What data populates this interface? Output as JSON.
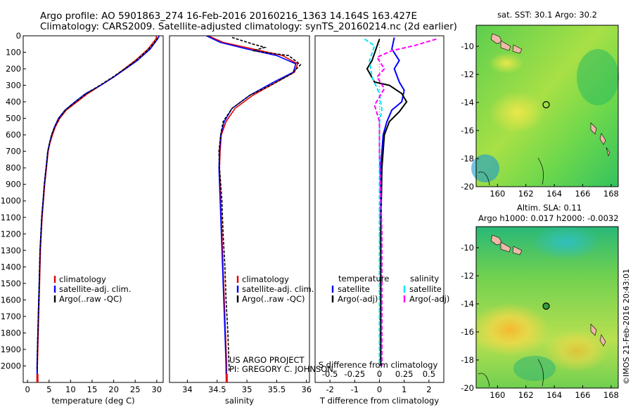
{
  "header": {
    "title_line1": "Argo profile: AO 5901863_274 16-Feb-2016 20160216_1363 14.164S 163.427E",
    "title_line2": "Climatology: CARS2009. Satellite-adjusted climatology: synTS_20160214.nc (2d earlier)"
  },
  "colors": {
    "climatology": "#e00000",
    "satellite": "#0000ff",
    "argo": "#000000",
    "sal_satellite": "#00e5ff",
    "sal_argo": "#ff00ff",
    "map_ocean_low": "#1fb070",
    "map_ocean_mid": "#7ed84a",
    "map_ocean_high": "#f2e64a",
    "land": "#f0b8a8"
  },
  "footer": {
    "project": "US ARGO PROJECT",
    "pi": "PI: GREGORY C. JOHNSON",
    "stamp": "©IMOS 21-Feb-2016 20:43:01"
  },
  "chart_data": [
    {
      "type": "line",
      "name": "temperature-profile",
      "xlabel": "temperature (deg C)",
      "ylabel": "",
      "xlim": [
        -1,
        31.5
      ],
      "ylim": [
        2100,
        0
      ],
      "xticks": [
        0,
        5,
        10,
        15,
        20,
        25,
        30
      ],
      "yticks": [
        0,
        100,
        200,
        300,
        400,
        500,
        600,
        700,
        800,
        900,
        1000,
        1100,
        1200,
        1300,
        1400,
        1500,
        1600,
        1700,
        1800,
        1900,
        2000
      ],
      "legend": [
        "climatology",
        "satellite-adj. clim.",
        "Argo(..raw -QC)"
      ],
      "series": [
        {
          "name": "climatology",
          "color_key": "climatology",
          "points": [
            [
              30,
              0
            ],
            [
              29.8,
              20
            ],
            [
              28,
              80
            ],
            [
              25,
              150
            ],
            [
              22.5,
              200
            ],
            [
              20,
              250
            ],
            [
              17,
              300
            ],
            [
              14,
              350
            ],
            [
              11.5,
              400
            ],
            [
              9,
              450
            ],
            [
              7.5,
              500
            ],
            [
              6.5,
              550
            ],
            [
              5.8,
              600
            ],
            [
              5.2,
              650
            ],
            [
              4.8,
              700
            ],
            [
              4.4,
              800
            ],
            [
              4.0,
              900
            ],
            [
              3.7,
              1000
            ],
            [
              3.4,
              1100
            ],
            [
              3.2,
              1200
            ],
            [
              3.0,
              1300
            ],
            [
              2.9,
              1400
            ],
            [
              2.8,
              1500
            ],
            [
              2.7,
              1600
            ],
            [
              2.6,
              1700
            ],
            [
              2.5,
              1800
            ],
            [
              2.4,
              1900
            ],
            [
              2.3,
              2000
            ],
            [
              2.3,
              2050
            ]
          ]
        },
        {
          "name": "satellite-adj. clim.",
          "color_key": "satellite",
          "points": [
            [
              30.6,
              0
            ],
            [
              30.2,
              20
            ],
            [
              28.5,
              80
            ],
            [
              25.5,
              150
            ],
            [
              22.8,
              200
            ],
            [
              20,
              250
            ],
            [
              17,
              300
            ],
            [
              13.5,
              350
            ],
            [
              11,
              400
            ],
            [
              8.7,
              450
            ],
            [
              7.2,
              500
            ],
            [
              6.3,
              550
            ],
            [
              5.6,
              600
            ],
            [
              5.1,
              650
            ],
            [
              4.7,
              700
            ],
            [
              4.3,
              800
            ],
            [
              3.9,
              900
            ],
            [
              3.6,
              1000
            ],
            [
              3.3,
              1100
            ],
            [
              3.1,
              1200
            ],
            [
              2.9,
              1300
            ],
            [
              2.8,
              1400
            ],
            [
              2.7,
              1500
            ],
            [
              2.6,
              1600
            ],
            [
              2.5,
              1700
            ],
            [
              2.4,
              1800
            ],
            [
              2.3,
              1900
            ],
            [
              2.2,
              2000
            ],
            [
              2.2,
              2050
            ]
          ]
        },
        {
          "name": "Argo(..raw -QC)",
          "color_key": "argo",
          "points": [
            [
              30.3,
              10
            ],
            [
              29.5,
              40
            ],
            [
              27.8,
              90
            ],
            [
              25.2,
              150
            ],
            [
              22.6,
              200
            ],
            [
              19.8,
              250
            ],
            [
              16.8,
              300
            ],
            [
              13.7,
              350
            ],
            [
              11.2,
              400
            ],
            [
              8.8,
              450
            ],
            [
              7.3,
              500
            ],
            [
              6.3,
              550
            ],
            [
              5.6,
              600
            ],
            [
              5.1,
              650
            ],
            [
              4.7,
              700
            ],
            [
              4.3,
              800
            ],
            [
              3.9,
              900
            ],
            [
              3.6,
              1000
            ],
            [
              3.3,
              1100
            ],
            [
              3.1,
              1200
            ],
            [
              2.9,
              1300
            ],
            [
              2.8,
              1400
            ],
            [
              2.7,
              1500
            ],
            [
              2.6,
              1600
            ],
            [
              2.5,
              1700
            ],
            [
              2.4,
              1800
            ],
            [
              2.3,
              1900
            ],
            [
              2.25,
              2000
            ],
            [
              2.25,
              2030
            ]
          ]
        }
      ]
    },
    {
      "type": "line",
      "name": "salinity-profile",
      "xlabel": "salinity",
      "xlim": [
        33.7,
        36.05
      ],
      "ylim": [
        2100,
        0
      ],
      "xticks": [
        34,
        34.5,
        35,
        35.5,
        36
      ],
      "legend": [
        "climatology",
        "satellite-adj. clim.",
        "Argo(..raw -QC)"
      ],
      "series": [
        {
          "name": "climatology",
          "color_key": "climatology",
          "points": [
            [
              34.35,
              0
            ],
            [
              34.6,
              40
            ],
            [
              35.1,
              80
            ],
            [
              35.6,
              120
            ],
            [
              35.85,
              170
            ],
            [
              35.8,
              220
            ],
            [
              35.5,
              280
            ],
            [
              35.1,
              360
            ],
            [
              34.8,
              440
            ],
            [
              34.65,
              520
            ],
            [
              34.57,
              600
            ],
            [
              34.55,
              700
            ],
            [
              34.54,
              800
            ],
            [
              34.55,
              900
            ],
            [
              34.56,
              1000
            ],
            [
              34.58,
              1200
            ],
            [
              34.6,
              1400
            ],
            [
              34.62,
              1600
            ],
            [
              34.64,
              1800
            ],
            [
              34.66,
              2000
            ],
            [
              34.66,
              2050
            ]
          ]
        },
        {
          "name": "satellite-adj. clim.",
          "color_key": "satellite",
          "points": [
            [
              34.32,
              0
            ],
            [
              34.55,
              40
            ],
            [
              35.0,
              80
            ],
            [
              35.5,
              120
            ],
            [
              35.82,
              170
            ],
            [
              35.78,
              220
            ],
            [
              35.45,
              280
            ],
            [
              35.05,
              360
            ],
            [
              34.75,
              440
            ],
            [
              34.62,
              520
            ],
            [
              34.56,
              600
            ],
            [
              34.54,
              700
            ],
            [
              34.53,
              800
            ],
            [
              34.54,
              900
            ],
            [
              34.55,
              1000
            ],
            [
              34.57,
              1200
            ],
            [
              34.59,
              1400
            ],
            [
              34.61,
              1600
            ],
            [
              34.63,
              1800
            ],
            [
              34.65,
              2000
            ],
            [
              34.65,
              2050
            ]
          ]
        },
        {
          "name": "Argo(..raw -QC)",
          "color_key": "argo",
          "points": [
            [
              34.75,
              10
            ],
            [
              35.1,
              50
            ],
            [
              35.3,
              70
            ],
            [
              35.1,
              90
            ],
            [
              35.7,
              120
            ],
            [
              35.9,
              175
            ],
            [
              35.75,
              230
            ],
            [
              35.45,
              290
            ],
            [
              35.05,
              360
            ],
            [
              34.75,
              440
            ],
            [
              34.6,
              520
            ],
            [
              34.56,
              600
            ],
            [
              34.53,
              700
            ],
            [
              34.54,
              800
            ],
            [
              34.56,
              900
            ],
            [
              34.58,
              1000
            ],
            [
              34.6,
              1200
            ],
            [
              34.63,
              1400
            ],
            [
              34.65,
              1600
            ],
            [
              34.68,
              1800
            ],
            [
              34.69,
              1900
            ],
            [
              34.7,
              2000
            ],
            [
              34.7,
              2030
            ]
          ]
        }
      ]
    },
    {
      "type": "line",
      "name": "difference-profile",
      "xlabel": "T difference from climatology",
      "xlabel_top": "S difference from climatology",
      "xlim": [
        -2.6,
        2.6
      ],
      "ylim": [
        2100,
        0
      ],
      "xticks": [
        -2,
        -1,
        0,
        1,
        2
      ],
      "sticks": [
        "-0.5",
        "-0.25",
        "0",
        "0.25",
        "0.5"
      ],
      "legend_left_title": "temperature",
      "legend_right_title": "salinity",
      "legend": [
        "satellite",
        "Argo(-adj)",
        "satellite",
        "Argo(-adj)"
      ],
      "series": [
        {
          "name": "T satellite",
          "color_key": "satellite",
          "points": [
            [
              0.6,
              10
            ],
            [
              0.5,
              80
            ],
            [
              0.8,
              150
            ],
            [
              0.6,
              200
            ],
            [
              0.8,
              280
            ],
            [
              1.0,
              330
            ],
            [
              0.9,
              400
            ],
            [
              0.5,
              450
            ],
            [
              0.3,
              520
            ],
            [
              0.15,
              600
            ],
            [
              0.05,
              800
            ],
            [
              0.05,
              1200
            ],
            [
              0.05,
              1600
            ],
            [
              0.05,
              2000
            ]
          ]
        },
        {
          "name": "T Argo(-adj)",
          "color_key": "argo",
          "points": [
            [
              0.0,
              20
            ],
            [
              -0.3,
              150
            ],
            [
              -0.5,
              200
            ],
            [
              -0.2,
              280
            ],
            [
              0.4,
              300
            ],
            [
              0.9,
              350
            ],
            [
              1.1,
              400
            ],
            [
              0.8,
              460
            ],
            [
              0.4,
              520
            ],
            [
              0.2,
              600
            ],
            [
              0.1,
              800
            ],
            [
              0.05,
              1200
            ],
            [
              0.05,
              1600
            ],
            [
              0.05,
              2000
            ]
          ]
        },
        {
          "name": "S satellite",
          "color_key": "sal_satellite",
          "points": [
            [
              -0.6,
              20
            ],
            [
              -0.2,
              60
            ],
            [
              -0.4,
              150
            ],
            [
              -0.3,
              250
            ],
            [
              0.0,
              350
            ],
            [
              0.1,
              450
            ],
            [
              0.0,
              520
            ],
            [
              0.0,
              700
            ],
            [
              0.0,
              1200
            ],
            [
              0.0,
              1600
            ],
            [
              0.0,
              2000
            ]
          ]
        },
        {
          "name": "S Argo(-adj)",
          "color_key": "sal_argo",
          "points": [
            [
              2.3,
              20
            ],
            [
              1.4,
              60
            ],
            [
              0.5,
              90
            ],
            [
              -0.1,
              130
            ],
            [
              0.2,
              200
            ],
            [
              -0.1,
              250
            ],
            [
              0.2,
              320
            ],
            [
              -0.2,
              420
            ],
            [
              0.0,
              520
            ],
            [
              0.0,
              700
            ],
            [
              0.1,
              1200
            ],
            [
              0.1,
              1600
            ],
            [
              0.1,
              2000
            ]
          ]
        }
      ]
    },
    {
      "type": "heatmap",
      "name": "sst-map",
      "title": "sat. SST: 30.1 Argo: 30.2",
      "xlim": [
        158.5,
        168.5
      ],
      "ylim": [
        -20,
        -8.5
      ],
      "xticks": [
        160,
        162,
        164,
        166,
        168
      ],
      "yticks": [
        -10,
        -12,
        -14,
        -16,
        -18,
        -20
      ],
      "argo_position": [
        163.427,
        -14.164
      ]
    },
    {
      "type": "heatmap",
      "name": "sla-map",
      "title_line1": "Altim. SLA: 0.11",
      "title_line2": "Argo h1000: 0.017 h2000: -0.0032",
      "xlim": [
        158.5,
        168.5
      ],
      "ylim": [
        -20,
        -8.5
      ],
      "xticks": [
        160,
        162,
        164,
        166,
        168
      ],
      "yticks": [
        -10,
        -12,
        -14,
        -16,
        -18,
        -20
      ],
      "argo_position": [
        163.427,
        -14.164
      ]
    }
  ]
}
